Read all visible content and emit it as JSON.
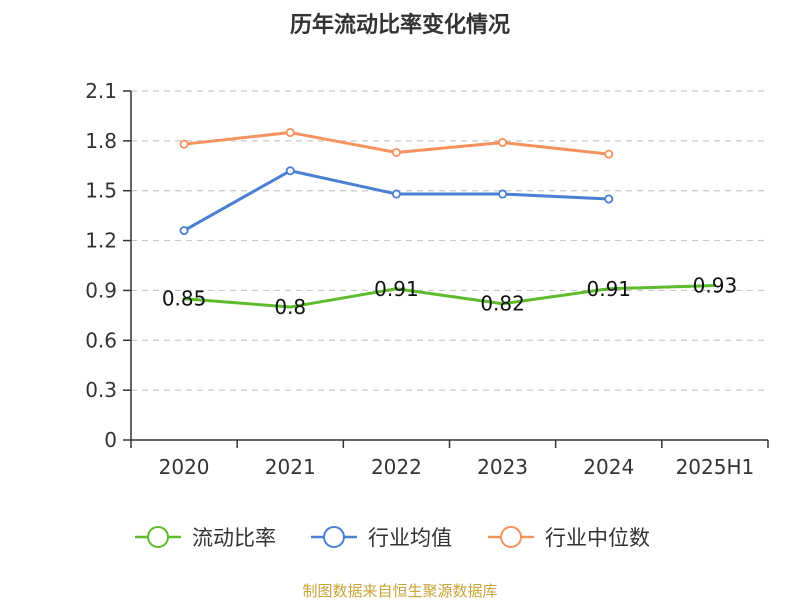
{
  "chart_data": {
    "type": "line",
    "title": "历年流动比率变化情况",
    "categories": [
      "2020",
      "2021",
      "2022",
      "2023",
      "2024",
      "2025H1"
    ],
    "ylim": [
      0,
      2.1
    ],
    "yticks": [
      "0",
      "0.3",
      "0.6",
      "0.9",
      "1.2",
      "1.5",
      "1.8",
      "2.1"
    ],
    "grid": true,
    "legend_position": "bottom",
    "series": [
      {
        "name": "流动比率",
        "color": "#5dbb2c",
        "values": [
          0.85,
          0.8,
          0.91,
          0.82,
          0.91,
          0.93
        ],
        "labels": [
          "0.85",
          "0.8",
          "0.91",
          "0.82",
          "0.91",
          "0.93"
        ],
        "show_markers": false
      },
      {
        "name": "行业均值",
        "color": "#4a7fd4",
        "values": [
          1.26,
          1.62,
          1.48,
          1.48,
          1.45,
          null
        ],
        "show_markers": true
      },
      {
        "name": "行业中位数",
        "color": "#f5925e",
        "values": [
          1.78,
          1.85,
          1.73,
          1.79,
          1.72,
          null
        ],
        "show_markers": true
      }
    ]
  },
  "source_text": "制图数据来自恒生聚源数据库"
}
